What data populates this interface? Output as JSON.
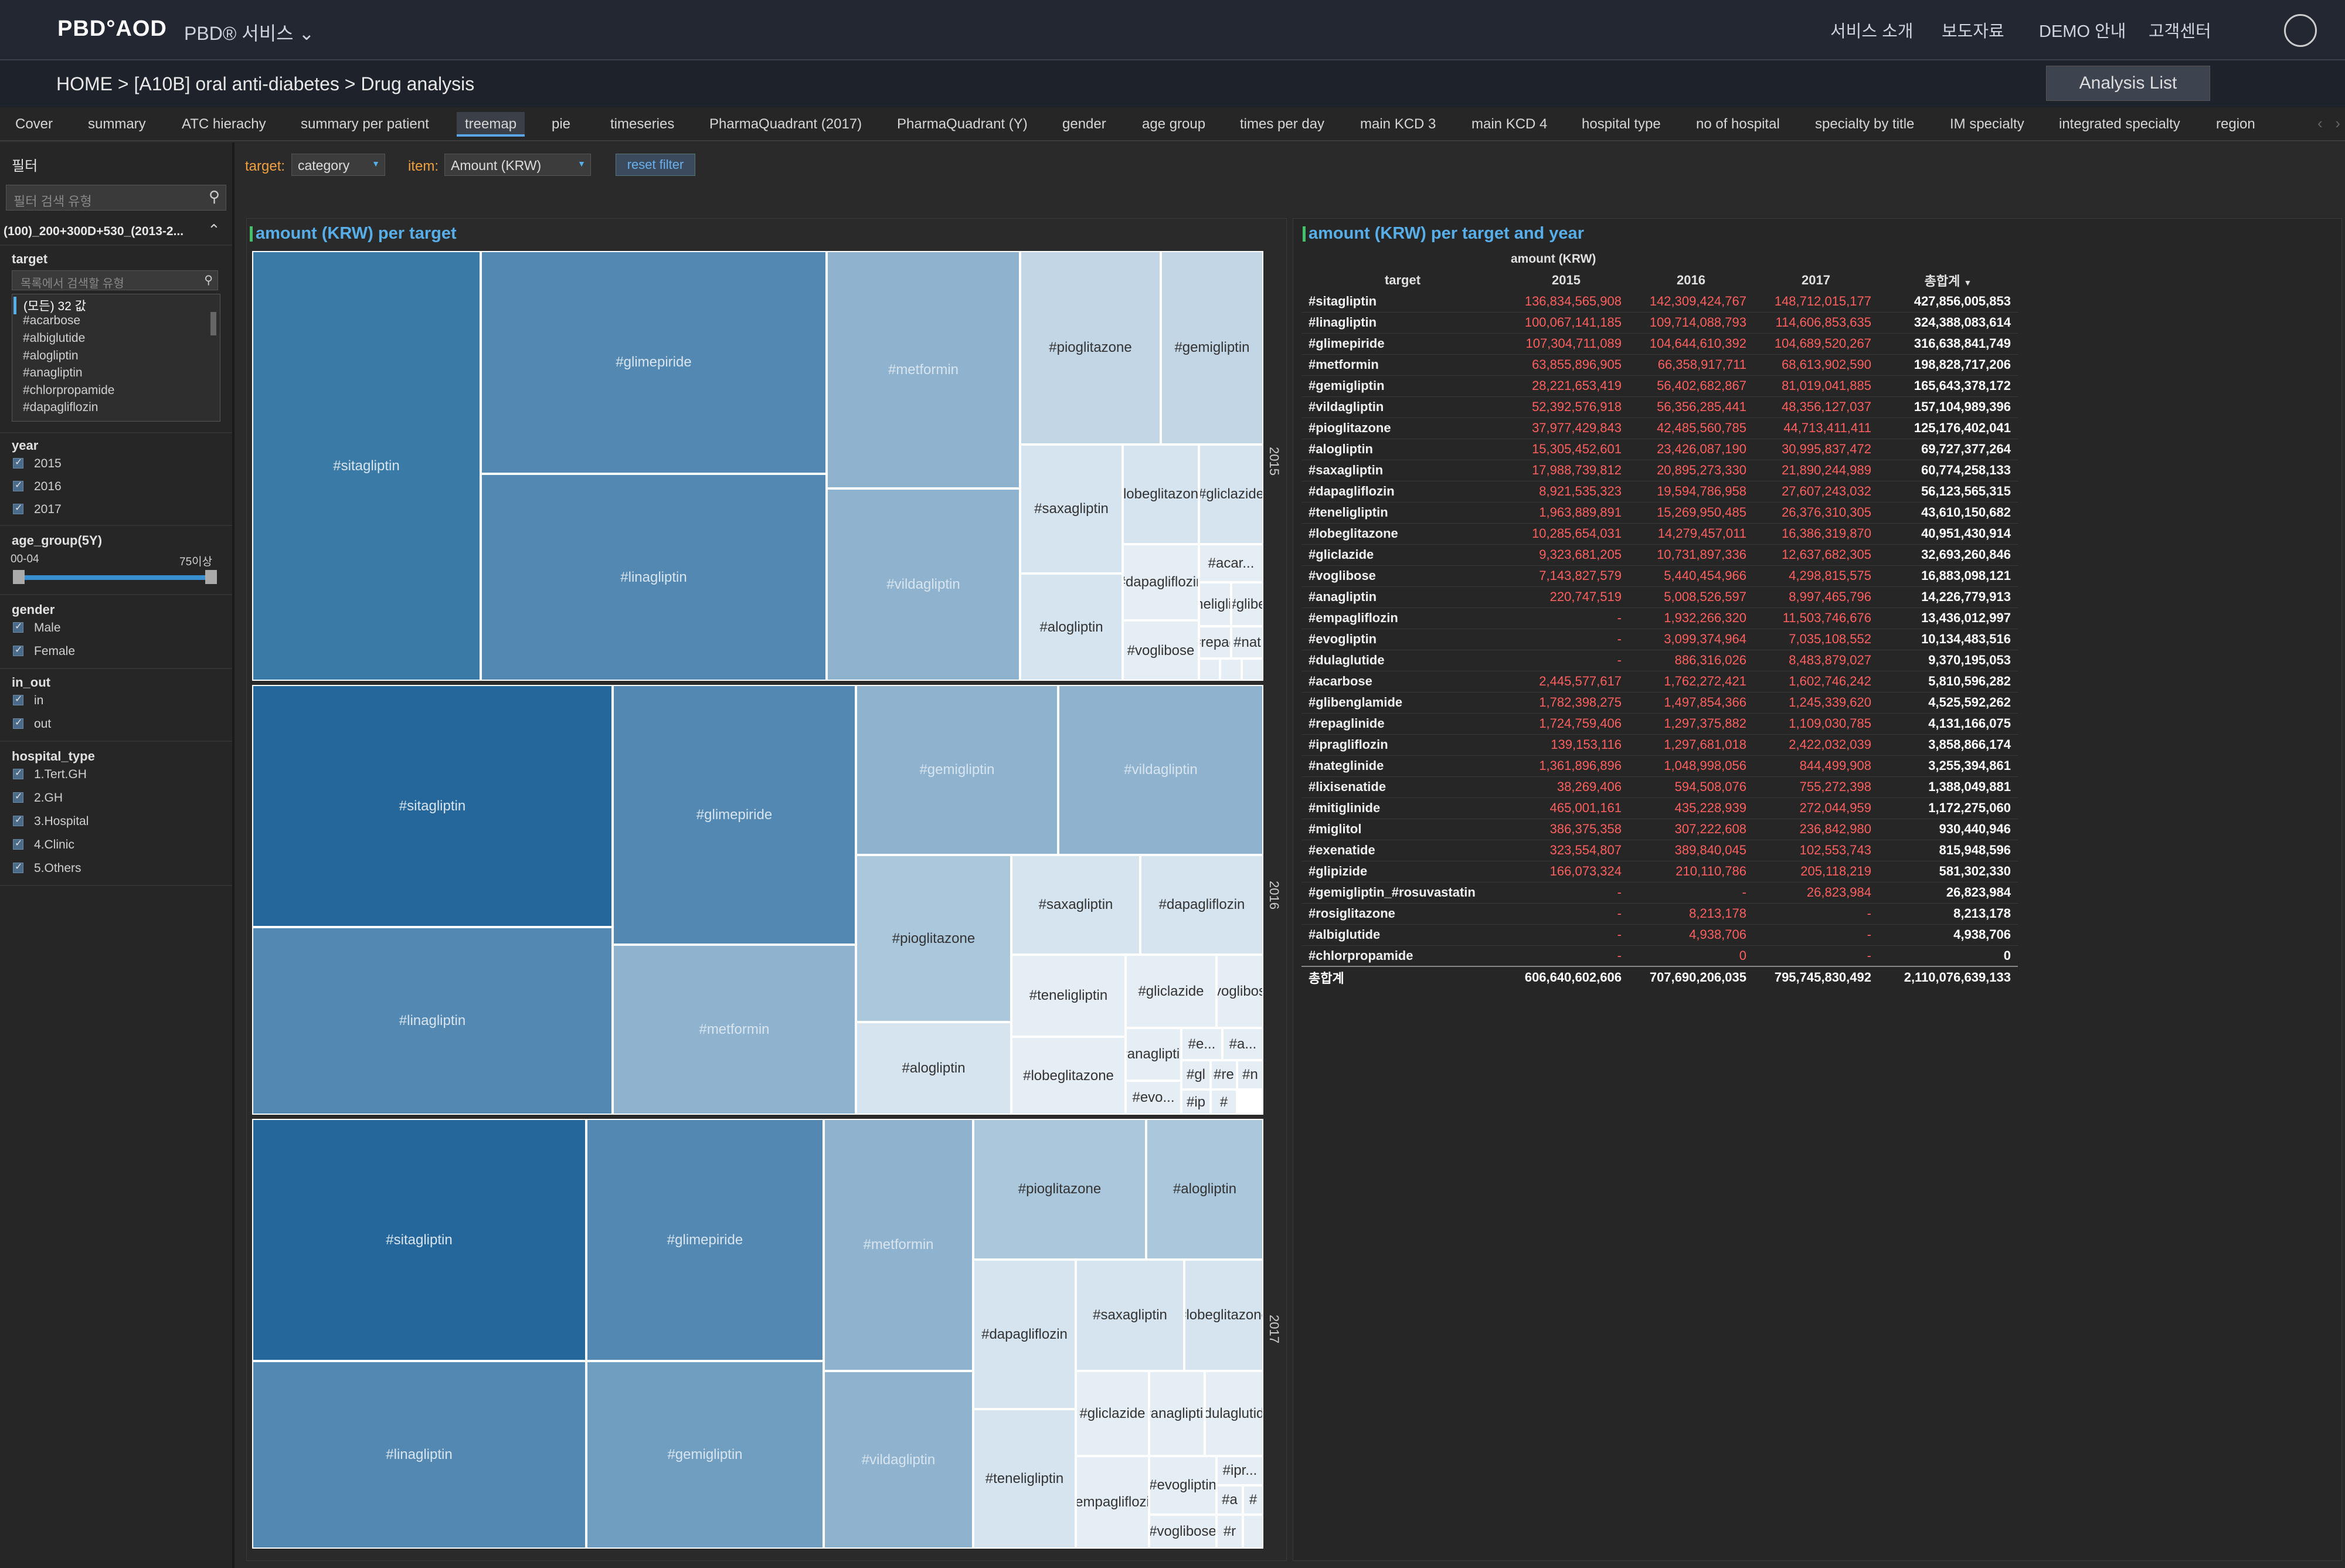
{
  "header": {
    "logo": "PBD°AOD",
    "service_menu": "PBD® 서비스",
    "nav": [
      "서비스 소개",
      "보도자료",
      "DEMO 안내",
      "고객센터"
    ]
  },
  "breadcrumb": "HOME >  [A10B] oral anti-diabetes > Drug analysis",
  "analysis_list_button": "Analysis List",
  "tabs": [
    "Cover",
    "summary",
    "ATC hierachy",
    "summary per patient",
    "treemap",
    "pie",
    "timeseries",
    "PharmaQuadrant (2017)",
    "PharmaQuadrant (Y)",
    "gender",
    "age group",
    "times per day",
    "main KCD 3",
    "main KCD 4",
    "hospital type",
    "no of hospital",
    "specialty by title",
    "IM specialty",
    "integrated specialty",
    "region"
  ],
  "active_tab": "treemap",
  "sidebar": {
    "title": "필터",
    "search_placeholder": "필터 검색 유형",
    "dataset": "(100)_200+300D+530_(2013-2...",
    "target": {
      "label": "target",
      "search_placeholder": "목록에서 검색할 유형",
      "items": [
        "(모든) 32 값",
        "#acarbose",
        "#albiglutide",
        "#alogliptin",
        "#anagliptin",
        "#chlorpropamide",
        "#dapagliflozin"
      ]
    },
    "year": {
      "label": "year",
      "options": [
        "2015",
        "2016",
        "2017"
      ]
    },
    "age_group": {
      "label": "age_group(5Y)",
      "min": "00-04",
      "max": "75이상"
    },
    "gender": {
      "label": "gender",
      "options": [
        "Male",
        "Female"
      ]
    },
    "in_out": {
      "label": "in_out",
      "options": [
        "in",
        "out"
      ]
    },
    "hospital_type": {
      "label": "hospital_type",
      "options": [
        "1.Tert.GH",
        "2.GH",
        "3.Hospital",
        "4.Clinic",
        "5.Others"
      ]
    }
  },
  "filters": {
    "target_label": "target:",
    "target_value": "category",
    "item_label": "item:",
    "item_value": "Amount (KRW)",
    "reset_label": "reset filter"
  },
  "treemap_panel": {
    "title": "amount (KRW) per target",
    "years": [
      "2015",
      "2016",
      "2017"
    ],
    "labels_2015": [
      "#sitagliptin",
      "#glimepiride",
      "#linagliptin",
      "#metformin",
      "#vildagliptin",
      "#pioglitazone",
      "#gemigliptin",
      "#saxagliptin",
      "#lobeglitazone",
      "#gliclazide",
      "#alogliptin",
      "#dapagliflozin",
      "#acar...",
      "#teneligliptin",
      "#glibe",
      "#voglibose",
      "#repag",
      "#nat"
    ],
    "labels_2016": [
      "#sitagliptin",
      "#glimepiride",
      "#linagliptin",
      "#metformin",
      "#gemigliptin",
      "#vildagliptin",
      "#pioglitazone",
      "#saxagliptin",
      "#dapagliflozin",
      "#teneligliptin",
      "#gliclazide",
      "#voglibose",
      "#alogliptin",
      "#lobeglitazone",
      "#anagliptin",
      "#e...",
      "#a...",
      "#gl",
      "#re",
      "#n",
      "#evo...",
      "#ip",
      "#"
    ],
    "labels_2017": [
      "#sitagliptin",
      "#glimepiride",
      "#linagliptin",
      "#gemigliptin",
      "#metformin",
      "#vildagliptin",
      "#pioglitazone",
      "#alogliptin",
      "#dapagliflozin",
      "#saxagliptin",
      "#lobeglitazone",
      "#teneligliptin",
      "#gliclazide",
      "#anagliptin",
      "#dulaglutide",
      "#empagliflozin",
      "#evogliptin",
      "#ipr...",
      "#a",
      "#",
      "#voglibose",
      "#r"
    ]
  },
  "table_panel": {
    "title": "amount (KRW) per target and year",
    "measure_header": "amount (KRW)",
    "target_header": "target",
    "year_headers": [
      "2015",
      "2016",
      "2017"
    ],
    "total_header": "총합계",
    "rows": [
      [
        "#sitagliptin",
        "136,834,565,908",
        "142,309,424,767",
        "148,712,015,177",
        "427,856,005,853"
      ],
      [
        "#linagliptin",
        "100,067,141,185",
        "109,714,088,793",
        "114,606,853,635",
        "324,388,083,614"
      ],
      [
        "#glimepiride",
        "107,304,711,089",
        "104,644,610,392",
        "104,689,520,267",
        "316,638,841,749"
      ],
      [
        "#metformin",
        "63,855,896,905",
        "66,358,917,711",
        "68,613,902,590",
        "198,828,717,206"
      ],
      [
        "#gemigliptin",
        "28,221,653,419",
        "56,402,682,867",
        "81,019,041,885",
        "165,643,378,172"
      ],
      [
        "#vildagliptin",
        "52,392,576,918",
        "56,356,285,441",
        "48,356,127,037",
        "157,104,989,396"
      ],
      [
        "#pioglitazone",
        "37,977,429,843",
        "42,485,560,785",
        "44,713,411,411",
        "125,176,402,041"
      ],
      [
        "#alogliptin",
        "15,305,452,601",
        "23,426,087,190",
        "30,995,837,472",
        "69,727,377,264"
      ],
      [
        "#saxagliptin",
        "17,988,739,812",
        "20,895,273,330",
        "21,890,244,989",
        "60,774,258,133"
      ],
      [
        "#dapagliflozin",
        "8,921,535,323",
        "19,594,786,958",
        "27,607,243,032",
        "56,123,565,315"
      ],
      [
        "#teneligliptin",
        "1,963,889,891",
        "15,269,950,485",
        "26,376,310,305",
        "43,610,150,682"
      ],
      [
        "#lobeglitazone",
        "10,285,654,031",
        "14,279,457,011",
        "16,386,319,870",
        "40,951,430,914"
      ],
      [
        "#gliclazide",
        "9,323,681,205",
        "10,731,897,336",
        "12,637,682,305",
        "32,693,260,846"
      ],
      [
        "#voglibose",
        "7,143,827,579",
        "5,440,454,966",
        "4,298,815,575",
        "16,883,098,121"
      ],
      [
        "#anagliptin",
        "220,747,519",
        "5,008,526,597",
        "8,997,465,796",
        "14,226,779,913"
      ],
      [
        "#empagliflozin",
        "-",
        "1,932,266,320",
        "11,503,746,676",
        "13,436,012,997"
      ],
      [
        "#evogliptin",
        "-",
        "3,099,374,964",
        "7,035,108,552",
        "10,134,483,516"
      ],
      [
        "#dulaglutide",
        "-",
        "886,316,026",
        "8,483,879,027",
        "9,370,195,053"
      ],
      [
        "#acarbose",
        "2,445,577,617",
        "1,762,272,421",
        "1,602,746,242",
        "5,810,596,282"
      ],
      [
        "#glibenglamide",
        "1,782,398,275",
        "1,497,854,366",
        "1,245,339,620",
        "4,525,592,262"
      ],
      [
        "#repaglinide",
        "1,724,759,406",
        "1,297,375,882",
        "1,109,030,785",
        "4,131,166,075"
      ],
      [
        "#ipragliflozin",
        "139,153,116",
        "1,297,681,018",
        "2,422,032,039",
        "3,858,866,174"
      ],
      [
        "#nateglinide",
        "1,361,896,896",
        "1,048,998,056",
        "844,499,908",
        "3,255,394,861"
      ],
      [
        "#lixisenatide",
        "38,269,406",
        "594,508,076",
        "755,272,398",
        "1,388,049,881"
      ],
      [
        "#mitiglinide",
        "465,001,161",
        "435,228,939",
        "272,044,959",
        "1,172,275,060"
      ],
      [
        "#miglitol",
        "386,375,358",
        "307,222,608",
        "236,842,980",
        "930,440,946"
      ],
      [
        "#exenatide",
        "323,554,807",
        "389,840,045",
        "102,553,743",
        "815,948,596"
      ],
      [
        "#glipizide",
        "166,073,324",
        "210,110,786",
        "205,118,219",
        "581,302,330"
      ],
      [
        "#gemigliptin_#rosuvastatin",
        "-",
        "-",
        "26,823,984",
        "26,823,984"
      ],
      [
        "#rosiglitazone",
        "-",
        "8,213,178",
        "-",
        "8,213,178"
      ],
      [
        "#albiglutide",
        "-",
        "4,938,706",
        "-",
        "4,938,706"
      ],
      [
        "#chlorpropamide",
        "-",
        "0",
        "-",
        "0"
      ]
    ],
    "totals": [
      "총합계",
      "606,640,602,606",
      "707,690,206,035",
      "795,745,830,492",
      "2,110,076,639,133"
    ]
  },
  "colors": {
    "accent": "#58aee8",
    "negative": "#ff5f5f",
    "treemap_dark": "#1b5e8c",
    "treemap_light": "#dbe8f1"
  }
}
